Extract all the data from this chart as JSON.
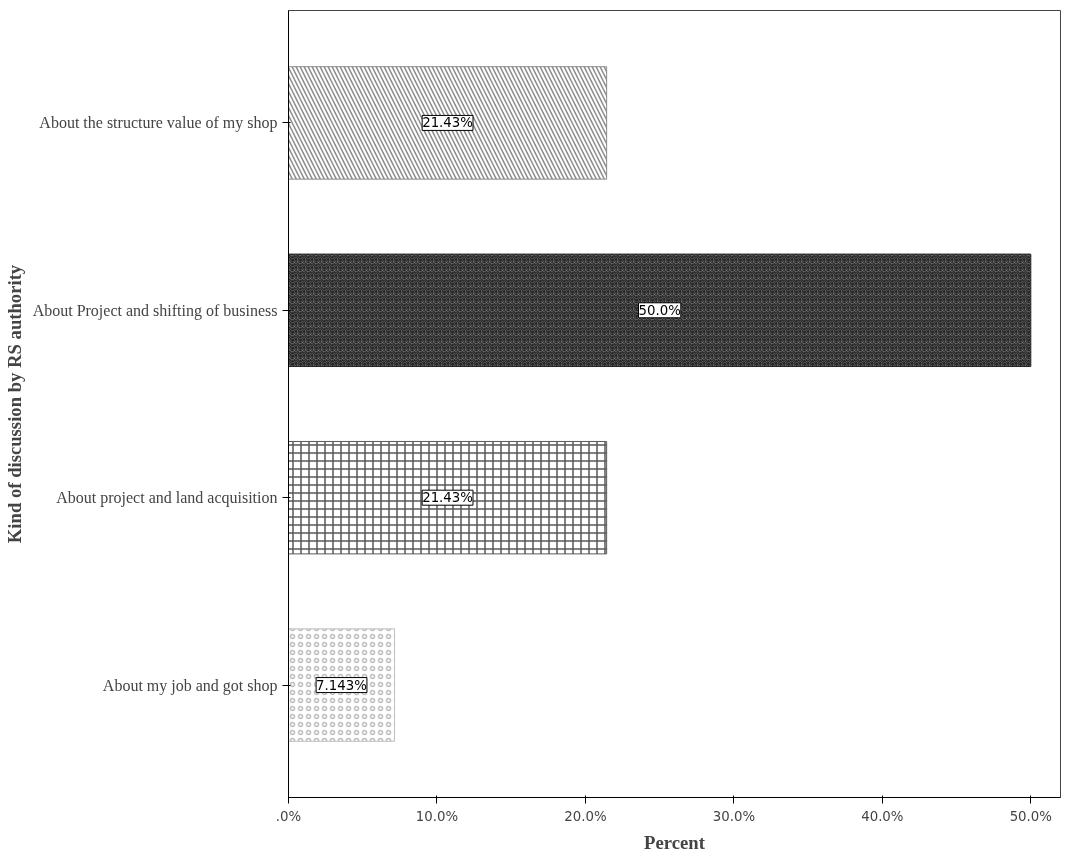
{
  "chart_data": {
    "type": "bar",
    "orientation": "horizontal",
    "categories": [
      "About the structure value of my shop",
      "About Project and shifting of business",
      "About project and land acquisition",
      "About my job and got shop"
    ],
    "values": [
      21.43,
      50.0,
      21.43,
      7.143
    ],
    "value_labels": [
      "21.43%",
      "50.0%",
      "21.43%",
      "7.143%"
    ],
    "colors": [
      "#8c8c8c",
      "#262626",
      "#595959",
      "#bfbfbf"
    ],
    "xlim": [
      0,
      52
    ],
    "xticks": [
      {
        "value": 0,
        "label": ".0%"
      },
      {
        "value": 10,
        "label": "10.0%"
      },
      {
        "value": 20,
        "label": "20.0%"
      },
      {
        "value": 30,
        "label": "30.0%"
      },
      {
        "value": 40,
        "label": "40.0%"
      },
      {
        "value": 50,
        "label": "50.0%"
      }
    ],
    "xlabel": "Percent",
    "ylabel": "Kind of discussion by RS authority",
    "grid": false
  }
}
